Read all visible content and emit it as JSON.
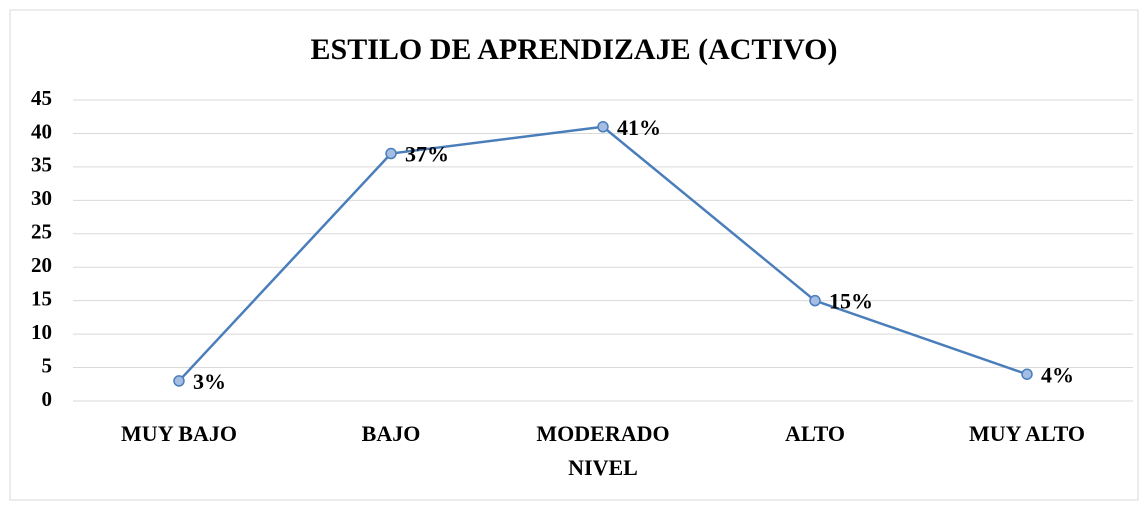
{
  "chart_data": {
    "type": "line",
    "title": "ESTILO DE APRENDIZAJE (ACTIVO)",
    "x_label": "NIVEL",
    "categories": [
      "MUY BAJO",
      "BAJO",
      "MODERADO",
      "ALTO",
      "MUY ALTO"
    ],
    "values": [
      3,
      37,
      41,
      15,
      4
    ],
    "value_labels": [
      "3%",
      "37%",
      "41%",
      "15%",
      "4%"
    ],
    "color": "#4a7ebb",
    "ylim": [
      0,
      45
    ],
    "yticks": [
      0,
      5,
      10,
      15,
      20,
      25,
      30,
      35,
      40,
      45
    ],
    "grid": true
  }
}
